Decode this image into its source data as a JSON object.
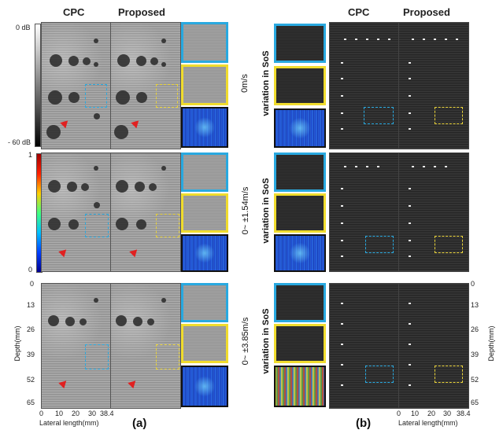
{
  "panel_a": {
    "header_cpc": "CPC",
    "header_proposed": "Proposed",
    "colorbar_top_db": "0 dB",
    "colorbar_bottom_db": "- 60 dB",
    "colorbar2_top": "1",
    "colorbar2_bottom": "0",
    "y_ticks": [
      "0",
      "13",
      "26",
      "39",
      "52",
      "65"
    ],
    "y_label": "Depth(mm)",
    "x_ticks": [
      "0",
      "10",
      "20",
      "30",
      "38.4"
    ],
    "x_label": "Lateral length(mm)",
    "caption": "(a)"
  },
  "panel_b": {
    "header_cpc": "CPC",
    "header_proposed": "Proposed",
    "row1_speed": "0m/s",
    "row2_speed": "0~ ±1.54m/s",
    "row3_speed": "0~ ±3.85m/s",
    "variation_label": "variation in SoS",
    "y_ticks": [
      "0",
      "13",
      "26",
      "39",
      "52",
      "65"
    ],
    "y_label": "Depth(mm)",
    "x_ticks": [
      "0",
      "10",
      "20",
      "30",
      "38.4"
    ],
    "x_label": "Lateral length(mm)",
    "caption": "(b)"
  },
  "colors": {
    "cyan_box": "#29a9e0",
    "yellow_box": "#f0dc2e",
    "red_arrow": "#e02020"
  }
}
